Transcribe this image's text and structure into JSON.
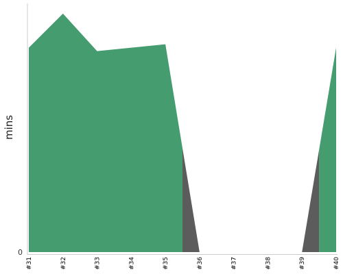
{
  "chart_data": {
    "type": "area",
    "title": "",
    "xlabel": "",
    "ylabel": "mins",
    "categories": [
      "#31",
      "#32",
      "#33",
      "#34",
      "#35",
      "#36",
      "#37",
      "#38",
      "#39",
      "#40"
    ],
    "ylim": [
      0,
      7.3
    ],
    "y_ticks": [
      {
        "value": 0,
        "label": "0"
      }
    ],
    "grid": false,
    "series": [
      {
        "color": "#459c6e",
        "values": [
          6,
          7,
          5.9,
          6,
          6.1,
          0,
          0,
          0,
          0,
          6
        ]
      },
      {
        "color": "#5c5c5c",
        "values": [
          0,
          0,
          0,
          0,
          0,
          0,
          0,
          0,
          0,
          0
        ]
      }
    ]
  },
  "colors": {
    "success": "#459c6e",
    "failure": "#5c5c5c",
    "axis": "#cccccc"
  }
}
